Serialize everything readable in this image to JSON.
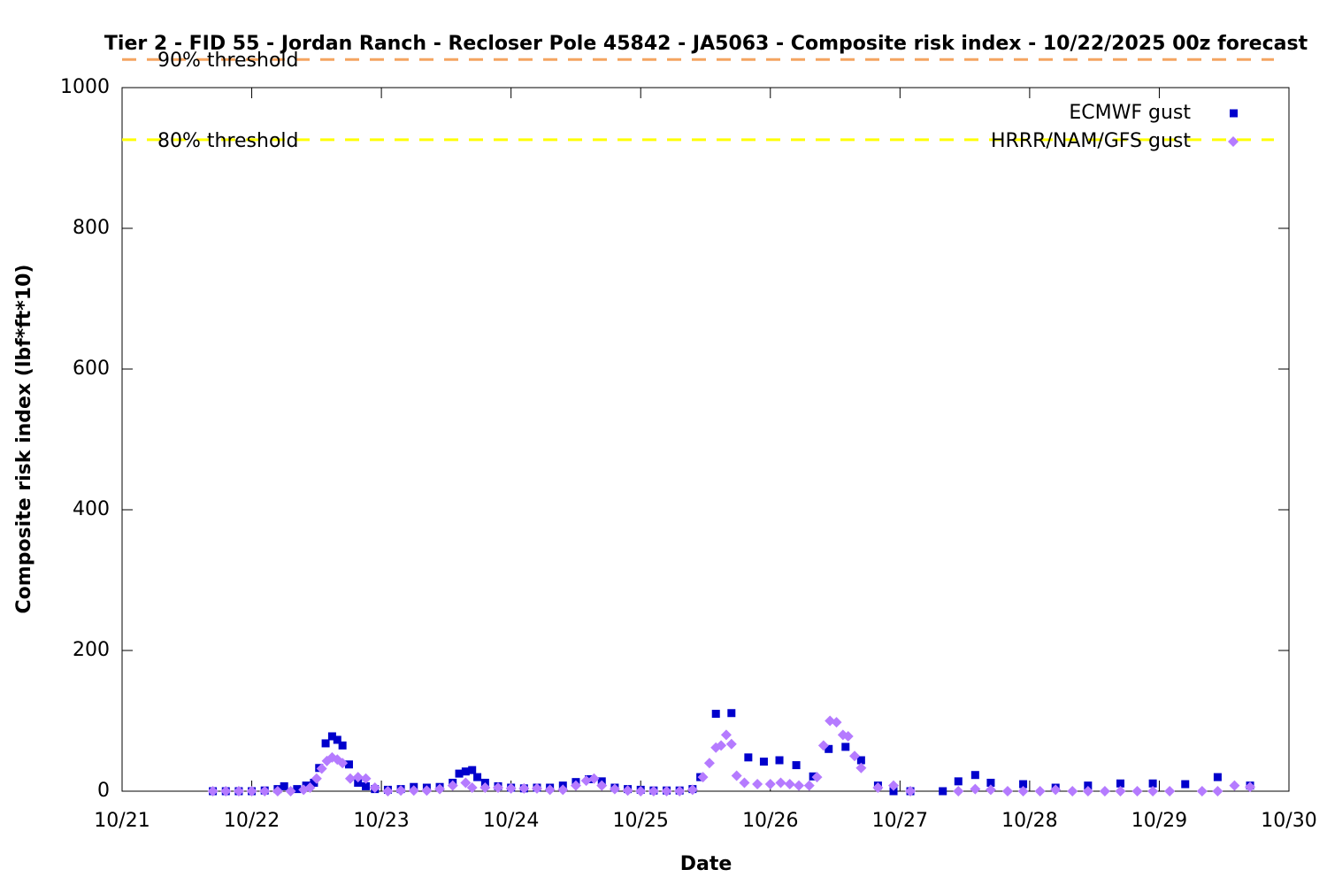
{
  "chart_data": {
    "type": "scatter",
    "title": "Tier 2 - FID 55 - Jordan Ranch - Recloser Pole 45842 - JA5063 - Composite risk index - 10/22/2025 00z forecast",
    "xlabel": "Date",
    "ylabel": "Composite risk index (lbf*ft*10)",
    "xlim": [
      21,
      30
    ],
    "xticks": [
      {
        "value": 21,
        "label": "10/21"
      },
      {
        "value": 22,
        "label": "10/22"
      },
      {
        "value": 23,
        "label": "10/23"
      },
      {
        "value": 24,
        "label": "10/24"
      },
      {
        "value": 25,
        "label": "10/25"
      },
      {
        "value": 26,
        "label": "10/26"
      },
      {
        "value": 27,
        "label": "10/27"
      },
      {
        "value": 28,
        "label": "10/28"
      },
      {
        "value": 29,
        "label": "10/29"
      },
      {
        "value": 30,
        "label": "10/30"
      }
    ],
    "ylim": [
      0,
      1000
    ],
    "yticks": [
      0,
      200,
      400,
      600,
      800,
      1000
    ],
    "thresholds": [
      {
        "name": "90% threshold",
        "value": 1040,
        "color": "#f4a460"
      },
      {
        "name": "80% threshold",
        "value": 926,
        "color": "#ffff00"
      }
    ],
    "series": [
      {
        "name": "ECMWF gust",
        "color": "#0000cc",
        "marker": "square",
        "x": [
          21.7,
          21.8,
          21.9,
          22.0,
          22.1,
          22.2,
          22.25,
          22.35,
          22.42,
          22.48,
          22.52,
          22.57,
          22.62,
          22.66,
          22.7,
          22.75,
          22.82,
          22.88,
          22.95,
          23.05,
          23.15,
          23.25,
          23.35,
          23.45,
          23.55,
          23.6,
          23.65,
          23.7,
          23.74,
          23.8,
          23.9,
          24.0,
          24.1,
          24.2,
          24.3,
          24.4,
          24.5,
          24.6,
          24.7,
          24.8,
          24.9,
          25.0,
          25.1,
          25.2,
          25.3,
          25.4,
          25.46,
          25.58,
          25.7,
          25.83,
          25.95,
          26.07,
          26.2,
          26.33,
          26.45,
          26.58,
          26.7,
          26.83,
          26.95,
          27.08,
          27.33,
          27.45,
          27.58,
          27.7,
          27.95,
          28.2,
          28.45,
          28.7,
          28.95,
          29.2,
          29.45,
          29.7
        ],
        "values": [
          0,
          0,
          0,
          0,
          1,
          3,
          7,
          3,
          8,
          12,
          33,
          68,
          78,
          73,
          65,
          38,
          12,
          7,
          3,
          2,
          3,
          6,
          5,
          6,
          12,
          25,
          28,
          30,
          20,
          12,
          7,
          5,
          4,
          5,
          5,
          8,
          13,
          17,
          14,
          5,
          3,
          2,
          1,
          1,
          1,
          3,
          20,
          110,
          111,
          48,
          42,
          44,
          37,
          21,
          60,
          63,
          44,
          8,
          0,
          0,
          0,
          14,
          23,
          12,
          10,
          5,
          8,
          11,
          11,
          10,
          20,
          8
        ]
      },
      {
        "name": "HRRR/NAM/GFS gust",
        "color": "#b57bff",
        "marker": "diamond",
        "x": [
          21.7,
          21.8,
          21.9,
          22.0,
          22.1,
          22.2,
          22.3,
          22.4,
          22.45,
          22.5,
          22.54,
          22.58,
          22.62,
          22.66,
          22.7,
          22.76,
          22.82,
          22.88,
          22.95,
          23.05,
          23.15,
          23.25,
          23.35,
          23.45,
          23.55,
          23.65,
          23.7,
          23.8,
          23.9,
          24.0,
          24.1,
          24.2,
          24.3,
          24.4,
          24.5,
          24.58,
          24.64,
          24.7,
          24.8,
          24.9,
          25.0,
          25.1,
          25.2,
          25.3,
          25.4,
          25.48,
          25.53,
          25.58,
          25.62,
          25.66,
          25.7,
          25.74,
          25.8,
          25.9,
          26.0,
          26.08,
          26.15,
          26.22,
          26.3,
          26.36,
          26.41,
          26.46,
          26.51,
          26.56,
          26.6,
          26.65,
          26.7,
          26.83,
          26.95,
          27.08,
          27.45,
          27.58,
          27.7,
          27.83,
          27.95,
          28.08,
          28.2,
          28.33,
          28.45,
          28.58,
          28.7,
          28.83,
          28.95,
          29.08,
          29.33,
          29.45,
          29.58,
          29.7
        ],
        "values": [
          0,
          0,
          0,
          0,
          0,
          0,
          0,
          2,
          5,
          18,
          32,
          43,
          48,
          45,
          40,
          18,
          20,
          18,
          5,
          0,
          1,
          1,
          1,
          3,
          8,
          12,
          5,
          5,
          5,
          4,
          4,
          4,
          2,
          2,
          8,
          15,
          18,
          8,
          3,
          1,
          0,
          0,
          0,
          0,
          2,
          20,
          40,
          62,
          65,
          80,
          67,
          22,
          12,
          10,
          10,
          12,
          10,
          8,
          8,
          20,
          65,
          100,
          98,
          80,
          78,
          50,
          33,
          5,
          8,
          0,
          0,
          3,
          2,
          0,
          0,
          0,
          2,
          0,
          0,
          0,
          0,
          0,
          0,
          0,
          0,
          0,
          8,
          6
        ]
      }
    ]
  }
}
